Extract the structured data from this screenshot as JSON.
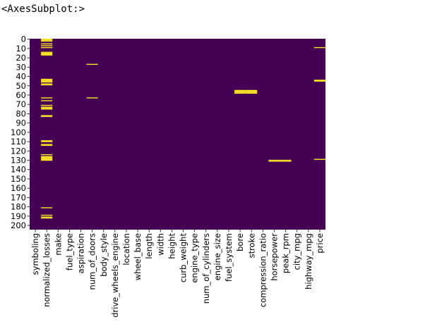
{
  "output_repr": "<AxesSubplot:>",
  "chart_data": {
    "type": "heatmap",
    "title": "",
    "xlabel": "",
    "ylabel": "",
    "n_rows": 205,
    "colormap": "viridis",
    "colorbar": false,
    "colors": {
      "missing": "#fde725",
      "present": "#440154"
    },
    "y_tick_labels": [
      "0",
      "10",
      "20",
      "30",
      "40",
      "50",
      "60",
      "70",
      "80",
      "90",
      "100",
      "110",
      "120",
      "130",
      "140",
      "150",
      "160",
      "170",
      "180",
      "190",
      "200"
    ],
    "columns": [
      "symboling",
      "normalized_losses",
      "make",
      "fuel_type",
      "aspiration",
      "num_of_doors",
      "body_style",
      "drive_wheels_engine",
      "location",
      "wheel_base",
      "length",
      "width",
      "height",
      "curb_weight",
      "engine_type",
      "num_of_cylinders",
      "engine_size",
      "fuel_system",
      "bore",
      "stroke",
      "compression_ratio",
      "horsepower",
      "peak_rpm",
      "city_mpg",
      "highway_mpg",
      "price"
    ],
    "missing_rows": {
      "normalized_losses": [
        0,
        1,
        2,
        5,
        7,
        9,
        14,
        15,
        16,
        17,
        43,
        44,
        45,
        46,
        48,
        49,
        63,
        66,
        71,
        73,
        74,
        75,
        82,
        83,
        109,
        110,
        113,
        114,
        124,
        126,
        127,
        128,
        129,
        130,
        181,
        189,
        191,
        192
      ],
      "num_of_doors": [
        27,
        63
      ],
      "bore": [
        55,
        56,
        57,
        58
      ],
      "stroke": [
        55,
        56,
        57,
        58
      ],
      "horsepower": [
        130,
        131
      ],
      "peak_rpm": [
        130,
        131
      ],
      "price": [
        9,
        44,
        45,
        129
      ]
    }
  }
}
